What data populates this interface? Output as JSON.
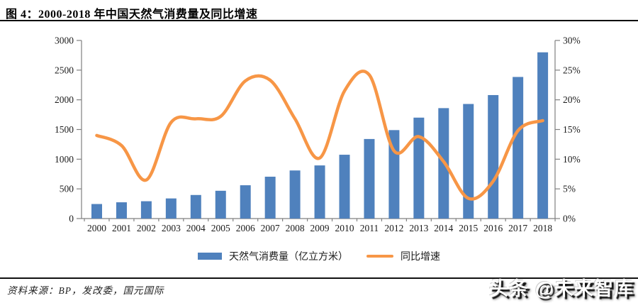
{
  "figure": {
    "caption": "图 4：2000-2018 年中国天然气消费量及同比增速"
  },
  "source_note": "资料来源：BP，发改委，国元国际",
  "watermark": "头条 @未来智库",
  "colors": {
    "bar": "#4F81BD",
    "line": "#F79646",
    "axis": "#808080",
    "text": "#1a1a1a",
    "rule": "#000000"
  },
  "chart_data": {
    "type": "bar",
    "subtype": "bar-line-combo",
    "title": "2000-2018 年中国天然气消费量及同比增速",
    "categories": [
      "2000",
      "2001",
      "2002",
      "2003",
      "2004",
      "2005",
      "2006",
      "2007",
      "2008",
      "2009",
      "2010",
      "2011",
      "2012",
      "2013",
      "2014",
      "2015",
      "2016",
      "2017",
      "2018"
    ],
    "series": [
      {
        "name": "天然气消费量（亿立方米）",
        "type": "bar",
        "axis": "left",
        "color": "#4F81BD",
        "values": [
          245,
          274,
          292,
          339,
          397,
          468,
          561,
          705,
          810,
          895,
          1075,
          1340,
          1490,
          1700,
          1860,
          1930,
          2080,
          2385,
          2800
        ]
      },
      {
        "name": "同比增速",
        "type": "line",
        "axis": "right",
        "smooth": true,
        "color": "#F79646",
        "values": [
          14.0,
          12.3,
          6.5,
          16.2,
          16.8,
          17.2,
          23.2,
          23.3,
          16.8,
          10.2,
          21.5,
          24.2,
          11.4,
          13.8,
          9.6,
          3.4,
          6.3,
          14.8,
          16.5
        ]
      }
    ],
    "left_axis": {
      "min": 0,
      "max": 3000,
      "step": 500,
      "tick_labels": [
        "0",
        "500",
        "1000",
        "1500",
        "2000",
        "2500",
        "3000"
      ]
    },
    "right_axis": {
      "min": 0,
      "max": 30,
      "step": 5,
      "unit": "%",
      "tick_labels": [
        "0%",
        "5%",
        "10%",
        "15%",
        "20%",
        "25%",
        "30%"
      ]
    },
    "grid": false,
    "legend_position": "bottom-center"
  }
}
